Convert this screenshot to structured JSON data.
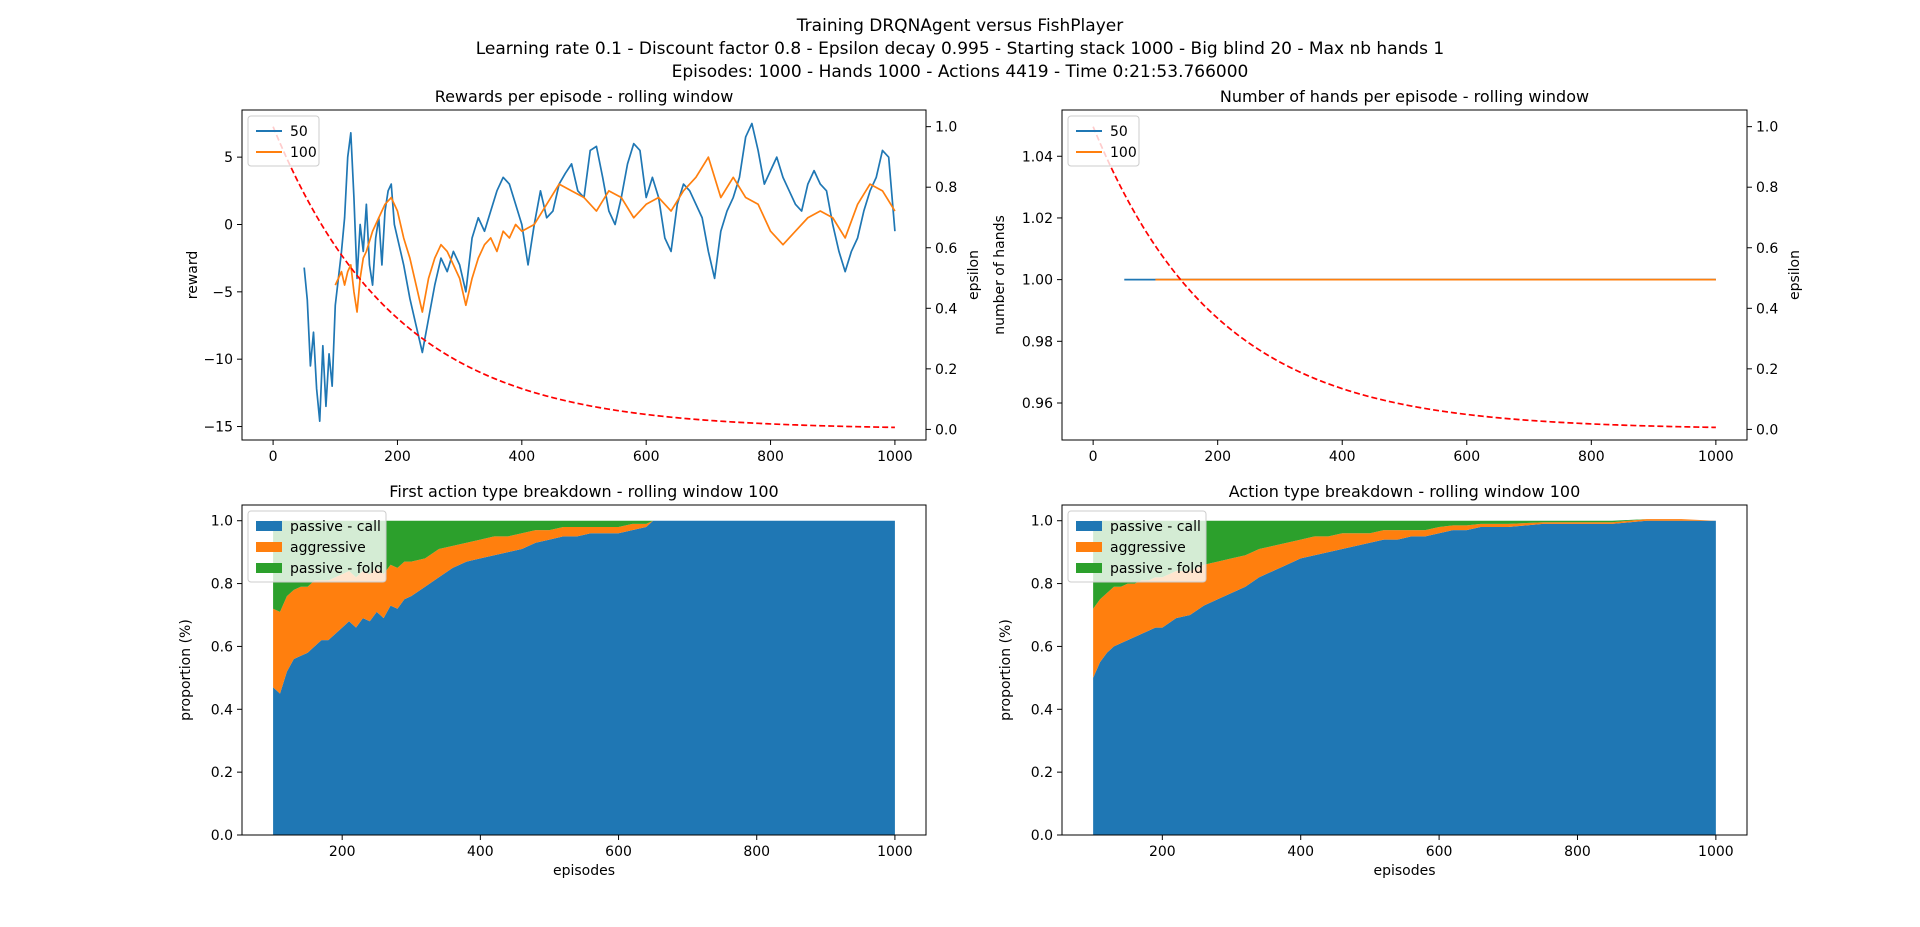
{
  "figure": {
    "suptitle_lines": [
      "Training DRQNAgent versus FishPlayer",
      "Learning rate 0.1 - Discount factor 0.8 - Epsilon decay 0.995 - Starting stack 1000 - Big blind 20 - Max nb hands 1",
      "Episodes: 1000 - Hands 1000 - Actions 4419 - Time 0:21:53.766000"
    ]
  },
  "colors": {
    "series_50": "#1f77b4",
    "series_100": "#ff7f0e",
    "epsilon": "#ff0000",
    "passive_call": "#1f77b4",
    "aggressive": "#ff7f0e",
    "passive_fold": "#2ca02c"
  },
  "chart_data": [
    {
      "type": "line",
      "title": "Rewards per episode - rolling window",
      "xlabel": "",
      "ylabel": "reward",
      "y2label": "epsilon",
      "xlim": [
        -50,
        1050
      ],
      "ylim": [
        -16,
        8.5
      ],
      "y2lim": [
        -0.035,
        1.055
      ],
      "xticks": [
        0,
        200,
        400,
        600,
        800,
        1000
      ],
      "yticks": [
        -15,
        -10,
        -5,
        0,
        5
      ],
      "y2ticks": [
        0.0,
        0.2,
        0.4,
        0.6,
        0.8,
        1.0
      ],
      "legend_position": "top-left",
      "epsilon": {
        "start": 1.0,
        "decay": 0.995,
        "episodes": 1000,
        "style": "dashed"
      },
      "series": [
        {
          "name": "50",
          "x": [
            50,
            55,
            60,
            65,
            70,
            75,
            80,
            85,
            90,
            95,
            100,
            105,
            110,
            115,
            120,
            125,
            130,
            135,
            140,
            145,
            150,
            155,
            160,
            165,
            170,
            175,
            180,
            185,
            190,
            195,
            200,
            210,
            220,
            230,
            240,
            250,
            260,
            270,
            280,
            290,
            300,
            310,
            320,
            330,
            340,
            350,
            360,
            370,
            380,
            390,
            400,
            410,
            420,
            430,
            440,
            450,
            460,
            470,
            480,
            490,
            500,
            510,
            520,
            530,
            540,
            550,
            560,
            570,
            580,
            590,
            600,
            610,
            620,
            630,
            640,
            650,
            660,
            670,
            680,
            690,
            700,
            710,
            720,
            730,
            740,
            750,
            760,
            770,
            780,
            790,
            800,
            810,
            820,
            830,
            840,
            850,
            860,
            870,
            880,
            890,
            900,
            910,
            920,
            930,
            940,
            950,
            960,
            970,
            980,
            990,
            1000
          ],
          "y": [
            -3.2,
            -5.6,
            -10.5,
            -8.0,
            -12.2,
            -14.6,
            -9.0,
            -13.5,
            -9.6,
            -12.0,
            -6.0,
            -4.0,
            -2.0,
            0.5,
            5.0,
            6.8,
            2.0,
            -4.0,
            0.0,
            -2.0,
            1.5,
            -3.0,
            -4.5,
            -1.0,
            0.5,
            -3.0,
            1.0,
            2.5,
            3.0,
            0.0,
            -1.0,
            -3.0,
            -5.5,
            -7.5,
            -9.5,
            -7.0,
            -4.5,
            -2.5,
            -3.5,
            -2.0,
            -3.0,
            -5.0,
            -1.0,
            0.5,
            -0.5,
            1.0,
            2.5,
            3.5,
            3.0,
            1.5,
            0.0,
            -3.0,
            0.0,
            2.5,
            0.5,
            1.0,
            3.0,
            3.8,
            4.5,
            2.5,
            2.0,
            5.5,
            5.8,
            3.5,
            1.0,
            0.0,
            2.0,
            4.5,
            6.0,
            5.5,
            2.0,
            3.5,
            2.0,
            -1.0,
            -2.0,
            1.5,
            3.0,
            2.5,
            1.5,
            0.5,
            -2.0,
            -4.0,
            -0.5,
            1.0,
            2.0,
            3.5,
            6.5,
            7.5,
            5.5,
            3.0,
            4.0,
            5.0,
            3.5,
            2.5,
            1.5,
            1.0,
            3.0,
            4.0,
            3.0,
            2.5,
            0.0,
            -2.0,
            -3.5,
            -2.0,
            -1.0,
            1.0,
            2.5,
            3.5,
            5.5,
            5.0,
            -0.5
          ]
        },
        {
          "name": "100",
          "x": [
            100,
            105,
            110,
            115,
            120,
            125,
            130,
            135,
            140,
            145,
            150,
            160,
            170,
            180,
            190,
            200,
            210,
            220,
            230,
            240,
            250,
            260,
            270,
            280,
            290,
            300,
            310,
            320,
            330,
            340,
            350,
            360,
            370,
            380,
            390,
            400,
            420,
            440,
            460,
            480,
            500,
            520,
            540,
            560,
            580,
            600,
            620,
            640,
            660,
            680,
            700,
            720,
            740,
            760,
            780,
            800,
            820,
            840,
            860,
            880,
            900,
            920,
            940,
            960,
            980,
            1000
          ],
          "y": [
            -4.5,
            -4.0,
            -3.5,
            -4.5,
            -3.5,
            -3.0,
            -5.0,
            -6.5,
            -4.0,
            -2.5,
            -2.0,
            -0.5,
            0.5,
            1.5,
            2.0,
            1.0,
            -1.0,
            -2.5,
            -4.5,
            -6.5,
            -4.0,
            -2.5,
            -1.5,
            -2.0,
            -3.0,
            -4.0,
            -6.0,
            -4.0,
            -2.5,
            -1.5,
            -1.0,
            -2.0,
            -0.5,
            -1.0,
            0.0,
            -0.5,
            0.0,
            1.5,
            3.0,
            2.5,
            2.0,
            1.0,
            2.5,
            2.0,
            0.5,
            1.5,
            2.0,
            1.0,
            2.5,
            3.5,
            5.0,
            2.0,
            3.5,
            2.0,
            1.5,
            -0.5,
            -1.5,
            -0.5,
            0.5,
            1.0,
            0.5,
            -1.0,
            1.5,
            3.0,
            2.5,
            1.0
          ]
        }
      ]
    },
    {
      "type": "line",
      "title": "Number of hands per episode - rolling window",
      "xlabel": "",
      "ylabel": "number of hands",
      "y2label": "epsilon",
      "xlim": [
        -50,
        1050
      ],
      "ylim": [
        0.948,
        1.055
      ],
      "y2lim": [
        -0.035,
        1.055
      ],
      "xticks": [
        0,
        200,
        400,
        600,
        800,
        1000
      ],
      "yticks": [
        0.96,
        0.98,
        1.0,
        1.02,
        1.04
      ],
      "y2ticks": [
        0.0,
        0.2,
        0.4,
        0.6,
        0.8,
        1.0
      ],
      "legend_position": "top-left",
      "epsilon": {
        "start": 1.0,
        "decay": 0.995,
        "episodes": 1000,
        "style": "dashed"
      },
      "series": [
        {
          "name": "50",
          "x": [
            50,
            1000
          ],
          "y": [
            1.0,
            1.0
          ]
        },
        {
          "name": "100",
          "x": [
            100,
            1000
          ],
          "y": [
            1.0,
            1.0
          ]
        }
      ]
    },
    {
      "type": "area",
      "stacked": true,
      "title": "First action type breakdown - rolling window 100",
      "xlabel": "episodes",
      "ylabel": "proportion (%)",
      "xlim": [
        55,
        1045
      ],
      "ylim": [
        0,
        1.05
      ],
      "xticks": [
        200,
        400,
        600,
        800,
        1000
      ],
      "yticks": [
        0.0,
        0.2,
        0.4,
        0.6,
        0.8,
        1.0
      ],
      "legend_position": "top-left",
      "x": [
        100,
        110,
        120,
        130,
        140,
        150,
        160,
        170,
        180,
        190,
        200,
        210,
        220,
        230,
        240,
        250,
        260,
        270,
        280,
        290,
        300,
        320,
        340,
        360,
        380,
        400,
        420,
        440,
        460,
        480,
        500,
        520,
        540,
        560,
        580,
        600,
        620,
        640,
        650,
        700,
        750,
        790,
        800,
        850,
        900,
        950,
        1000
      ],
      "series": [
        {
          "name": "passive - call",
          "values": [
            0.47,
            0.45,
            0.52,
            0.56,
            0.57,
            0.58,
            0.6,
            0.62,
            0.62,
            0.64,
            0.66,
            0.68,
            0.66,
            0.69,
            0.68,
            0.71,
            0.69,
            0.73,
            0.72,
            0.75,
            0.76,
            0.79,
            0.82,
            0.85,
            0.87,
            0.88,
            0.89,
            0.9,
            0.91,
            0.93,
            0.94,
            0.95,
            0.95,
            0.96,
            0.96,
            0.96,
            0.97,
            0.98,
            1.0,
            1.0,
            1.0,
            1.0,
            1.0,
            1.0,
            1.0,
            1.0,
            1.0
          ]
        },
        {
          "name": "aggressive",
          "values": [
            0.25,
            0.26,
            0.24,
            0.22,
            0.22,
            0.21,
            0.21,
            0.19,
            0.19,
            0.18,
            0.17,
            0.16,
            0.16,
            0.15,
            0.15,
            0.14,
            0.14,
            0.13,
            0.13,
            0.12,
            0.11,
            0.09,
            0.09,
            0.07,
            0.06,
            0.06,
            0.06,
            0.05,
            0.05,
            0.04,
            0.03,
            0.03,
            0.03,
            0.02,
            0.02,
            0.02,
            0.02,
            0.01,
            0.0,
            0.0,
            0.0,
            0.0,
            0.0,
            0.0,
            0.0,
            0.0,
            0.0
          ]
        },
        {
          "name": "passive - fold",
          "values": [
            0.28,
            0.29,
            0.24,
            0.22,
            0.21,
            0.21,
            0.19,
            0.19,
            0.19,
            0.18,
            0.17,
            0.16,
            0.18,
            0.16,
            0.17,
            0.15,
            0.17,
            0.14,
            0.15,
            0.13,
            0.13,
            0.12,
            0.09,
            0.08,
            0.07,
            0.06,
            0.05,
            0.05,
            0.04,
            0.03,
            0.03,
            0.02,
            0.02,
            0.02,
            0.02,
            0.02,
            0.01,
            0.01,
            0.0,
            0.0,
            0.0,
            0.0,
            0.0,
            0.0,
            0.0,
            0.0,
            0.0
          ]
        }
      ]
    },
    {
      "type": "area",
      "stacked": true,
      "title": "Action type breakdown - rolling window 100",
      "xlabel": "episodes",
      "ylabel": "proportion (%)",
      "xlim": [
        55,
        1045
      ],
      "ylim": [
        0,
        1.05
      ],
      "xticks": [
        200,
        400,
        600,
        800,
        1000
      ],
      "yticks": [
        0.0,
        0.2,
        0.4,
        0.6,
        0.8,
        1.0
      ],
      "legend_position": "top-left",
      "x": [
        100,
        110,
        120,
        130,
        140,
        150,
        160,
        170,
        180,
        190,
        200,
        220,
        240,
        260,
        280,
        300,
        320,
        340,
        360,
        380,
        400,
        420,
        440,
        460,
        480,
        500,
        520,
        540,
        560,
        580,
        600,
        620,
        640,
        660,
        680,
        700,
        750,
        800,
        850,
        900,
        950,
        1000
      ],
      "series": [
        {
          "name": "passive - call",
          "values": [
            0.5,
            0.55,
            0.58,
            0.6,
            0.61,
            0.62,
            0.63,
            0.64,
            0.65,
            0.66,
            0.66,
            0.69,
            0.7,
            0.73,
            0.75,
            0.77,
            0.79,
            0.82,
            0.84,
            0.86,
            0.88,
            0.89,
            0.9,
            0.91,
            0.92,
            0.93,
            0.94,
            0.94,
            0.95,
            0.95,
            0.96,
            0.97,
            0.97,
            0.98,
            0.98,
            0.98,
            0.99,
            0.99,
            0.99,
            1.0,
            1.0,
            1.0
          ]
        },
        {
          "name": "aggressive",
          "values": [
            0.22,
            0.2,
            0.19,
            0.19,
            0.18,
            0.18,
            0.17,
            0.17,
            0.16,
            0.16,
            0.16,
            0.15,
            0.14,
            0.13,
            0.12,
            0.11,
            0.1,
            0.09,
            0.08,
            0.07,
            0.06,
            0.06,
            0.05,
            0.05,
            0.04,
            0.03,
            0.03,
            0.03,
            0.02,
            0.02,
            0.02,
            0.015,
            0.015,
            0.01,
            0.01,
            0.01,
            0.005,
            0.005,
            0.005,
            0.005,
            0.005,
            0.0
          ]
        },
        {
          "name": "passive - fold",
          "values": [
            0.28,
            0.25,
            0.23,
            0.21,
            0.21,
            0.2,
            0.2,
            0.19,
            0.19,
            0.18,
            0.18,
            0.16,
            0.16,
            0.14,
            0.13,
            0.12,
            0.11,
            0.09,
            0.08,
            0.07,
            0.06,
            0.05,
            0.05,
            0.04,
            0.04,
            0.04,
            0.03,
            0.03,
            0.03,
            0.03,
            0.02,
            0.015,
            0.015,
            0.01,
            0.01,
            0.01,
            0.005,
            0.005,
            0.005,
            0.0,
            0.0,
            0.0
          ]
        }
      ]
    }
  ]
}
